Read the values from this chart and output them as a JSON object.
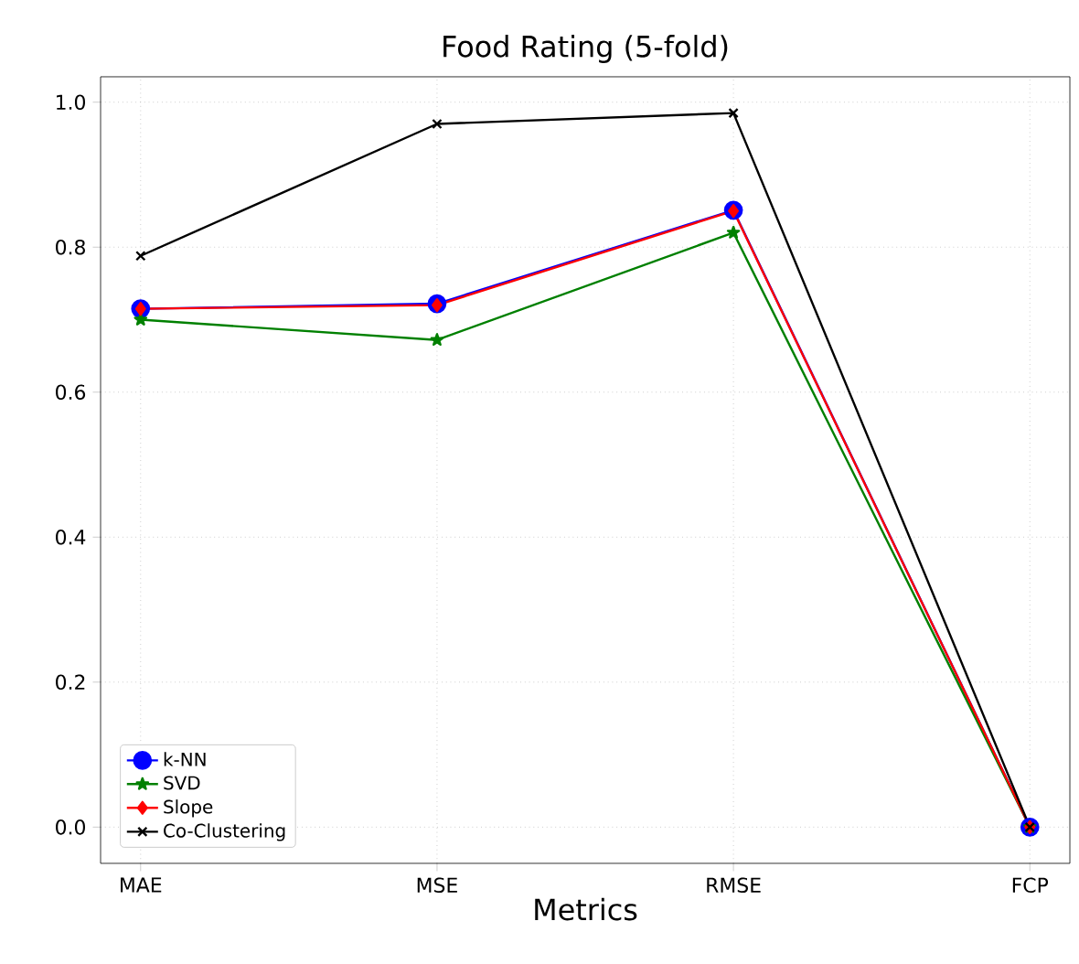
{
  "chart_data": {
    "type": "line",
    "title": "Food Rating (5-fold)",
    "xlabel": "Metrics",
    "categories": [
      "MAE",
      "MSE",
      "RMSE",
      "FCP"
    ],
    "series": [
      {
        "name": "k-NN",
        "color": "#0000ff",
        "marker": "circle",
        "values": [
          0.715,
          0.722,
          0.851,
          0
        ]
      },
      {
        "name": "SVD",
        "color": "#008000",
        "marker": "star",
        "values": [
          0.7,
          0.672,
          0.82,
          0
        ]
      },
      {
        "name": "Slope",
        "color": "#ff0000",
        "marker": "diamond",
        "values": [
          0.715,
          0.72,
          0.85,
          0
        ]
      },
      {
        "name": "Co-Clustering",
        "color": "#000000",
        "marker": "cross",
        "values": [
          0.788,
          0.97,
          0.985,
          0
        ]
      }
    ],
    "ylim": [
      -0.05,
      1.035
    ],
    "yticks": [
      {
        "value": 0,
        "label": "0.0"
      },
      {
        "value": 0.2,
        "label": "0.2"
      },
      {
        "value": 0.4,
        "label": "0.4"
      },
      {
        "value": 0.6,
        "label": "0.6"
      },
      {
        "value": 0.8,
        "label": "0.8"
      },
      {
        "value": 1.0,
        "label": "1.0"
      }
    ],
    "grid": true,
    "legend": "bottom left",
    "line_style": "solid"
  }
}
